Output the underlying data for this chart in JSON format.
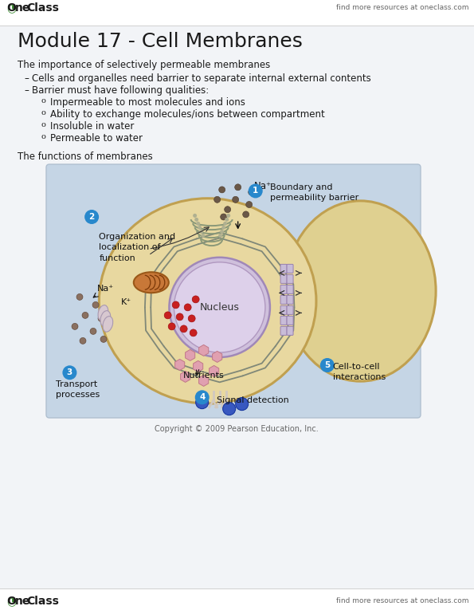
{
  "page_bg": "#f2f4f7",
  "header_bg": "#ffffff",
  "title": "Module 17 - Cell Membranes",
  "header_right": "find more resources at oneclass.com",
  "footer_right": "find more resources at oneclass.com",
  "bullet_section_title": "The importance of selectively permeable membranes",
  "bullets_level1": [
    "Cells and organelles need barrier to separate internal external contents",
    "Barrier must have following qualities:"
  ],
  "bullets_level2": [
    "Impermeable to most molecules and ions",
    "Ability to exchange molecules/ions between compartment",
    "Insoluble in water",
    "Permeable to water"
  ],
  "functions_title": "The functions of membranes",
  "copyright": "Copyright © 2009 Pearson Education, Inc.",
  "diagram_bg": "#c5d5e5",
  "cell_fill": "#e8d8a0",
  "cell2_fill": "#ddd090",
  "nucleus_fill": "#ddd0e8",
  "label1": "Boundary and\npermeability barrier",
  "label2": "Organization and\nlocalization of\nfunction",
  "label3": "Transport\nprocesses",
  "label4": "Signal detection",
  "label5": "Cell-to-cell\ninteractions",
  "nucleus_label": "Nucleus",
  "na_label": "Na⁺",
  "k_label": "K⁺",
  "nutrients_label": "Nutrients"
}
